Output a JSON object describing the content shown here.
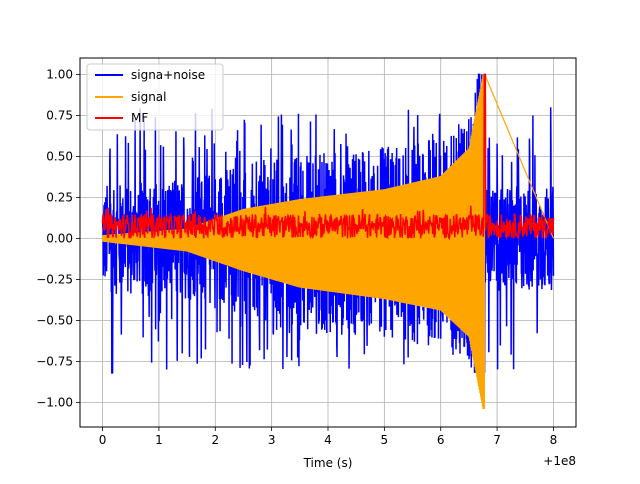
{
  "chart_data": {
    "type": "line",
    "title": "",
    "xlabel": "Time (s)",
    "ylabel": "",
    "x_offset_text": "+1e8",
    "xlim": [
      -0.4,
      8.4
    ],
    "ylim": [
      -1.15,
      1.1
    ],
    "x_ticks": [
      0,
      1,
      2,
      3,
      4,
      5,
      6,
      7,
      8
    ],
    "x_tick_labels": [
      "0",
      "1",
      "2",
      "3",
      "4",
      "5",
      "6",
      "7",
      "8"
    ],
    "y_ticks": [
      -1.0,
      -0.75,
      -0.5,
      -0.25,
      0.0,
      0.25,
      0.5,
      0.75,
      1.0
    ],
    "y_tick_labels": [
      "−1.00",
      "−0.75",
      "−0.50",
      "−0.25",
      "0.00",
      "0.25",
      "0.50",
      "0.75",
      "1.00"
    ],
    "grid": true,
    "legend_position": "top-left",
    "series": [
      {
        "name": "signa+noise",
        "color": "#0000ff",
        "x_range": [
          0,
          8
        ],
        "baseline_amplitude": 0.32,
        "spike_max": 1.0,
        "spike_min": -0.82
      },
      {
        "name": "signal",
        "color": "#ffa500",
        "x_range": [
          0,
          6.78
        ],
        "envelope": [
          {
            "x": 0.0,
            "upper": 0.02,
            "lower": -0.02
          },
          {
            "x": 1.5,
            "upper": 0.06,
            "lower": -0.08
          },
          {
            "x": 2.5,
            "upper": 0.18,
            "lower": -0.2
          },
          {
            "x": 3.5,
            "upper": 0.24,
            "lower": -0.3
          },
          {
            "x": 5.0,
            "upper": 0.3,
            "lower": -0.37
          },
          {
            "x": 6.0,
            "upper": 0.38,
            "lower": -0.44
          },
          {
            "x": 6.5,
            "upper": 0.55,
            "lower": -0.6
          },
          {
            "x": 6.75,
            "upper": 1.0,
            "lower": -1.04
          }
        ]
      },
      {
        "name": "MF",
        "color": "#ff0000",
        "x_range": [
          0,
          8
        ],
        "baseline_range": [
          0.0,
          0.15
        ],
        "peak_x": 6.78,
        "peak_y": 1.0
      }
    ]
  }
}
